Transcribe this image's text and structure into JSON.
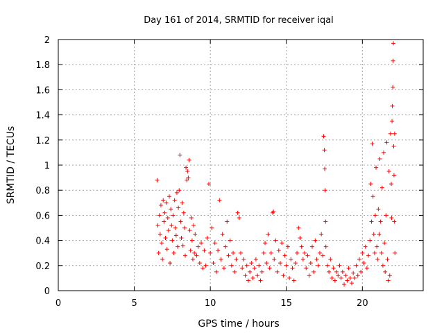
{
  "chart_data": {
    "type": "scatter",
    "title": "Day 161 of 2014, SRMTID for receiver iqal",
    "xlabel": "GPS time / hours",
    "ylabel": "SRMTID / TECUs",
    "xlim": [
      0,
      24
    ],
    "ylim": [
      0,
      2
    ],
    "x_ticks": [
      0,
      5,
      10,
      15,
      20
    ],
    "x_tick_labels": [
      "0",
      "5",
      "10",
      "15",
      "20"
    ],
    "y_ticks": [
      0,
      0.2,
      0.4,
      0.6,
      0.8,
      1,
      1.2,
      1.4,
      1.6,
      1.8,
      2
    ],
    "y_tick_labels": [
      "0",
      "0.2",
      "0.4",
      "0.6",
      "0.8",
      "1",
      "1.2",
      "1.4",
      "1.6",
      "1.8",
      "2"
    ],
    "grid": true,
    "marker": "+",
    "series": [
      {
        "name": "SRMTID",
        "color": "#ff0000",
        "points": [
          [
            6.5,
            0.88
          ],
          [
            6.55,
            0.52
          ],
          [
            6.6,
            0.3
          ],
          [
            6.65,
            0.6
          ],
          [
            6.7,
            0.45
          ],
          [
            6.75,
            0.68
          ],
          [
            6.8,
            0.38
          ],
          [
            6.85,
            0.25
          ],
          [
            6.9,
            0.72
          ],
          [
            6.95,
            0.55
          ],
          [
            7.0,
            0.62
          ],
          [
            7.05,
            0.42
          ],
          [
            7.1,
            0.7
          ],
          [
            7.15,
            0.33
          ],
          [
            7.2,
            0.58
          ],
          [
            7.25,
            0.48
          ],
          [
            7.3,
            0.75
          ],
          [
            7.35,
            0.22
          ],
          [
            7.4,
            0.65
          ],
          [
            7.45,
            0.52
          ],
          [
            7.5,
            0.4
          ],
          [
            7.55,
            0.6
          ],
          [
            7.6,
            0.3
          ],
          [
            7.65,
            0.72
          ],
          [
            7.7,
            0.5
          ],
          [
            7.75,
            0.44
          ],
          [
            7.8,
            0.78
          ],
          [
            7.85,
            0.35
          ],
          [
            7.9,
            0.66
          ],
          [
            7.95,
            0.8
          ],
          [
            8.0,
            1.08
          ],
          [
            8.05,
            0.55
          ],
          [
            8.1,
            0.42
          ],
          [
            8.15,
            0.7
          ],
          [
            8.2,
            0.36
          ],
          [
            8.25,
            0.62
          ],
          [
            8.3,
            0.5
          ],
          [
            8.35,
            0.28
          ],
          [
            8.4,
            0.98
          ],
          [
            8.45,
            0.88
          ],
          [
            8.5,
            0.95
          ],
          [
            8.55,
            0.9
          ],
          [
            8.6,
            1.04
          ],
          [
            8.65,
            0.48
          ],
          [
            8.7,
            0.32
          ],
          [
            8.75,
            0.58
          ],
          [
            8.8,
            0.4
          ],
          [
            8.85,
            0.25
          ],
          [
            8.9,
            0.52
          ],
          [
            8.95,
            0.3
          ],
          [
            9.0,
            0.45
          ],
          [
            9.1,
            0.28
          ],
          [
            9.2,
            0.35
          ],
          [
            9.3,
            0.22
          ],
          [
            9.4,
            0.38
          ],
          [
            9.5,
            0.18
          ],
          [
            9.6,
            0.32
          ],
          [
            9.7,
            0.2
          ],
          [
            9.8,
            0.42
          ],
          [
            9.9,
            0.85
          ],
          [
            10.0,
            0.3
          ],
          [
            10.1,
            0.5
          ],
          [
            10.2,
            0.22
          ],
          [
            10.3,
            0.38
          ],
          [
            10.4,
            0.15
          ],
          [
            10.5,
            0.32
          ],
          [
            10.6,
            0.72
          ],
          [
            10.7,
            0.25
          ],
          [
            10.8,
            0.45
          ],
          [
            10.9,
            0.18
          ],
          [
            11.0,
            0.35
          ],
          [
            11.1,
            0.55
          ],
          [
            11.2,
            0.28
          ],
          [
            11.3,
            0.4
          ],
          [
            11.4,
            0.2
          ],
          [
            11.5,
            0.3
          ],
          [
            11.6,
            0.15
          ],
          [
            11.7,
            0.25
          ],
          [
            11.8,
            0.62
          ],
          [
            11.9,
            0.58
          ],
          [
            12.0,
            0.3
          ],
          [
            12.1,
            0.18
          ],
          [
            12.2,
            0.25
          ],
          [
            12.3,
            0.12
          ],
          [
            12.4,
            0.2
          ],
          [
            12.5,
            0.08
          ],
          [
            12.6,
            0.15
          ],
          [
            12.7,
            0.22
          ],
          [
            12.8,
            0.1
          ],
          [
            12.9,
            0.18
          ],
          [
            13.0,
            0.25
          ],
          [
            13.1,
            0.12
          ],
          [
            13.2,
            0.2
          ],
          [
            13.3,
            0.08
          ],
          [
            13.4,
            0.15
          ],
          [
            13.5,
            0.3
          ],
          [
            13.6,
            0.38
          ],
          [
            13.7,
            0.22
          ],
          [
            13.8,
            0.45
          ],
          [
            13.9,
            0.18
          ],
          [
            14.0,
            0.3
          ],
          [
            14.1,
            0.62
          ],
          [
            14.15,
            0.63
          ],
          [
            14.2,
            0.25
          ],
          [
            14.3,
            0.4
          ],
          [
            14.4,
            0.15
          ],
          [
            14.5,
            0.32
          ],
          [
            14.6,
            0.22
          ],
          [
            14.7,
            0.38
          ],
          [
            14.8,
            0.12
          ],
          [
            14.9,
            0.28
          ],
          [
            15.0,
            0.2
          ],
          [
            15.1,
            0.35
          ],
          [
            15.2,
            0.1
          ],
          [
            15.3,
            0.25
          ],
          [
            15.4,
            0.18
          ],
          [
            15.5,
            0.08
          ],
          [
            15.6,
            0.22
          ],
          [
            15.7,
            0.3
          ],
          [
            15.8,
            0.5
          ],
          [
            15.9,
            0.42
          ],
          [
            16.0,
            0.35
          ],
          [
            16.1,
            0.25
          ],
          [
            16.2,
            0.3
          ],
          [
            16.3,
            0.18
          ],
          [
            16.4,
            0.28
          ],
          [
            16.5,
            0.12
          ],
          [
            16.6,
            0.22
          ],
          [
            16.7,
            0.35
          ],
          [
            16.8,
            0.15
          ],
          [
            16.9,
            0.4
          ],
          [
            17.0,
            0.25
          ],
          [
            17.1,
            0.2
          ],
          [
            17.2,
            0.3
          ],
          [
            17.3,
            0.45
          ],
          [
            17.4,
            0.28
          ],
          [
            17.45,
            1.23
          ],
          [
            17.5,
            1.12
          ],
          [
            17.52,
            0.97
          ],
          [
            17.55,
            0.8
          ],
          [
            17.58,
            0.55
          ],
          [
            17.6,
            0.35
          ],
          [
            17.7,
            0.2
          ],
          [
            17.8,
            0.15
          ],
          [
            17.9,
            0.25
          ],
          [
            18.0,
            0.1
          ],
          [
            18.1,
            0.18
          ],
          [
            18.2,
            0.08
          ],
          [
            18.3,
            0.15
          ],
          [
            18.4,
            0.12
          ],
          [
            18.5,
            0.2
          ],
          [
            18.6,
            0.1
          ],
          [
            18.7,
            0.15
          ],
          [
            18.8,
            0.05
          ],
          [
            18.9,
            0.12
          ],
          [
            19.0,
            0.08
          ],
          [
            19.1,
            0.18
          ],
          [
            19.2,
            0.1
          ],
          [
            19.3,
            0.06
          ],
          [
            19.4,
            0.14
          ],
          [
            19.5,
            0.1
          ],
          [
            19.6,
            0.2
          ],
          [
            19.7,
            0.12
          ],
          [
            19.8,
            0.25
          ],
          [
            19.9,
            0.15
          ],
          [
            20.0,
            0.3
          ],
          [
            20.1,
            0.22
          ],
          [
            20.2,
            0.35
          ],
          [
            20.3,
            0.18
          ],
          [
            20.4,
            0.28
          ],
          [
            20.5,
            0.4
          ],
          [
            20.55,
            0.85
          ],
          [
            20.6,
            0.55
          ],
          [
            20.65,
            1.17
          ],
          [
            20.7,
            0.75
          ],
          [
            20.75,
            0.45
          ],
          [
            20.8,
            0.3
          ],
          [
            20.85,
            0.6
          ],
          [
            20.9,
            0.98
          ],
          [
            20.95,
            0.35
          ],
          [
            21.0,
            0.25
          ],
          [
            21.05,
            0.65
          ],
          [
            21.1,
            0.45
          ],
          [
            21.15,
            1.05
          ],
          [
            21.2,
            0.55
          ],
          [
            21.25,
            0.3
          ],
          [
            21.3,
            0.82
          ],
          [
            21.35,
            0.2
          ],
          [
            21.4,
            1.1
          ],
          [
            21.45,
            0.38
          ],
          [
            21.5,
            0.15
          ],
          [
            21.55,
            0.6
          ],
          [
            21.6,
            1.18
          ],
          [
            21.65,
            0.25
          ],
          [
            21.7,
            0.08
          ],
          [
            21.75,
            0.95
          ],
          [
            21.8,
            0.12
          ],
          [
            21.85,
            1.25
          ],
          [
            21.9,
            0.85
          ],
          [
            21.92,
            0.58
          ],
          [
            21.95,
            1.35
          ],
          [
            21.97,
            1.47
          ],
          [
            22.0,
            1.62
          ],
          [
            22.02,
            1.83
          ],
          [
            22.04,
            1.97
          ],
          [
            22.06,
            1.15
          ],
          [
            22.08,
            0.92
          ],
          [
            22.1,
            0.55
          ],
          [
            22.12,
            1.25
          ],
          [
            22.14,
            0.3
          ]
        ]
      }
    ]
  }
}
